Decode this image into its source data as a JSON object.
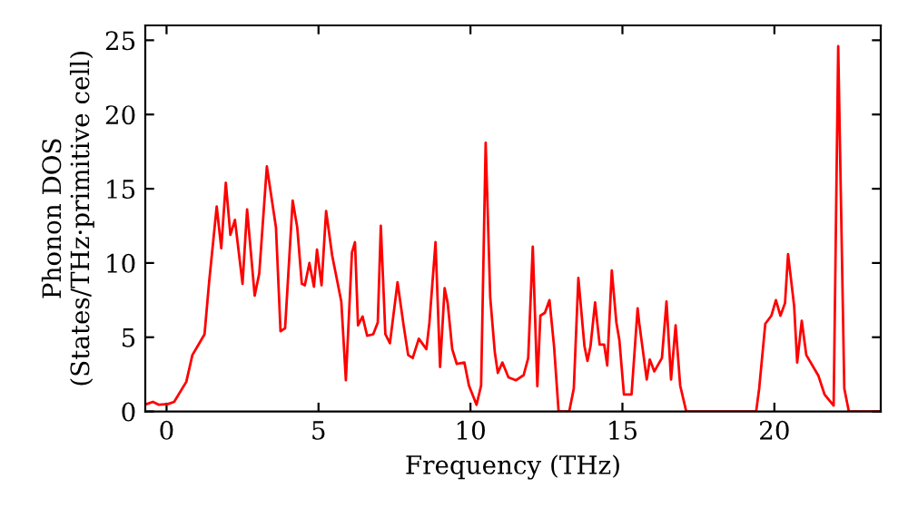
{
  "chart_data": {
    "type": "line",
    "xlabel": "Frequency (THz)",
    "ylabel": "Phonon DOS\n(States/THz·primitive cell)",
    "xlim": [
      -0.7,
      23.5
    ],
    "ylim": [
      0,
      26
    ],
    "xticks": [
      0,
      5,
      10,
      15,
      20
    ],
    "yticks": [
      0,
      5,
      10,
      15,
      20,
      25
    ],
    "grid": false,
    "marker": "none",
    "line_style": "solid",
    "series": [
      {
        "color": "#ff0000",
        "x": [
          -0.65,
          -0.45,
          -0.25,
          0.05,
          0.25,
          0.65,
          0.85,
          1.05,
          1.25,
          1.4,
          1.65,
          1.8,
          1.95,
          2.1,
          2.25,
          2.5,
          2.65,
          2.9,
          3.05,
          3.3,
          3.6,
          3.75,
          3.9,
          4.15,
          4.3,
          4.45,
          4.55,
          4.7,
          4.85,
          4.95,
          5.1,
          5.25,
          5.45,
          5.75,
          5.9,
          6.1,
          6.2,
          6.3,
          6.45,
          6.6,
          6.8,
          6.95,
          7.05,
          7.2,
          7.35,
          7.6,
          7.8,
          7.95,
          8.1,
          8.3,
          8.55,
          8.65,
          8.85,
          9.0,
          9.15,
          9.25,
          9.4,
          9.55,
          9.8,
          9.95,
          10.2,
          10.35,
          10.5,
          10.65,
          10.8,
          10.9,
          11.05,
          11.25,
          11.5,
          11.75,
          11.9,
          12.05,
          12.2,
          12.3,
          12.45,
          12.6,
          12.75,
          12.9,
          13.25,
          13.4,
          13.55,
          13.75,
          13.85,
          13.95,
          14.1,
          14.25,
          14.4,
          14.5,
          14.65,
          14.8,
          14.9,
          15.05,
          15.3,
          15.5,
          15.55,
          15.8,
          15.9,
          16.05,
          16.3,
          16.45,
          16.6,
          16.75,
          16.9,
          17.1,
          19.4,
          19.5,
          19.7,
          19.9,
          20.05,
          20.2,
          20.35,
          20.45,
          20.65,
          20.75,
          20.9,
          21.05,
          21.45,
          21.65,
          21.95,
          22.1,
          22.3,
          22.45,
          23.45
        ],
        "values": [
          0.5,
          0.65,
          0.45,
          0.5,
          0.65,
          2.0,
          3.8,
          4.5,
          5.2,
          8.7,
          13.8,
          11.0,
          15.4,
          11.9,
          12.9,
          8.6,
          13.6,
          7.8,
          9.3,
          16.5,
          12.4,
          5.4,
          5.6,
          14.2,
          12.4,
          8.6,
          8.5,
          10.0,
          8.4,
          10.9,
          8.5,
          13.5,
          10.5,
          7.4,
          2.1,
          10.7,
          11.4,
          5.8,
          6.4,
          5.1,
          5.2,
          6.0,
          12.5,
          5.2,
          4.6,
          8.7,
          5.8,
          3.8,
          3.6,
          4.9,
          4.2,
          6.0,
          11.4,
          3.0,
          8.3,
          7.3,
          4.2,
          3.2,
          3.3,
          1.75,
          0.45,
          1.75,
          18.1,
          7.7,
          4.0,
          2.6,
          3.3,
          2.3,
          2.1,
          2.45,
          3.6,
          11.1,
          1.7,
          6.45,
          6.65,
          7.5,
          4.4,
          0,
          0,
          1.55,
          9.0,
          4.4,
          3.4,
          4.4,
          7.35,
          4.5,
          4.5,
          3.1,
          9.5,
          6.0,
          4.8,
          1.15,
          1.15,
          6.95,
          6.0,
          2.15,
          3.5,
          2.7,
          3.6,
          7.4,
          2.15,
          5.8,
          1.75,
          0,
          0,
          1.55,
          5.9,
          6.45,
          7.5,
          6.45,
          7.3,
          10.6,
          7.1,
          3.3,
          6.1,
          3.8,
          2.4,
          1.15,
          0.4,
          24.6,
          1.55,
          0,
          0
        ]
      }
    ]
  }
}
